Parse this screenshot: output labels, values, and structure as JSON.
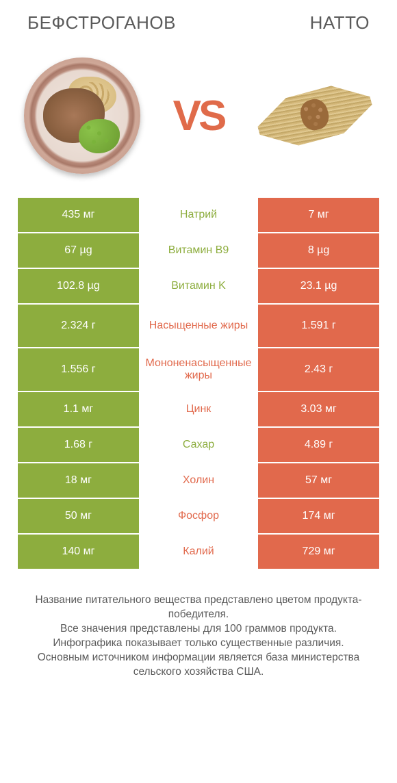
{
  "header": {
    "left_title": "БЕФСТРОГАНОВ",
    "right_title": "НАТТО"
  },
  "vs_label": "VS",
  "colors": {
    "left_bar": "#8dad3e",
    "right_bar": "#e1694c",
    "mid_text_left_winner": "#8dad3e",
    "mid_text_right_winner": "#e1694c",
    "background": "#ffffff",
    "value_text": "#ffffff",
    "header_text": "#5a5a5a",
    "footer_text": "#5a5a5a"
  },
  "table": {
    "row_height_single": 50,
    "row_height_double": 62,
    "font_size_value": 16,
    "font_size_label": 16,
    "rows": [
      {
        "label": "Натрий",
        "left": "435 мг",
        "right": "7 мг",
        "winner": "left"
      },
      {
        "label": "Витамин B9",
        "left": "67 µg",
        "right": "8 µg",
        "winner": "left"
      },
      {
        "label": "Витамин K",
        "left": "102.8 µg",
        "right": "23.1 µg",
        "winner": "left"
      },
      {
        "label": "Насыщенные жиры",
        "left": "2.324 г",
        "right": "1.591 г",
        "winner": "right"
      },
      {
        "label": "Мононенасыщенные жиры",
        "left": "1.556 г",
        "right": "2.43 г",
        "winner": "right"
      },
      {
        "label": "Цинк",
        "left": "1.1 мг",
        "right": "3.03 мг",
        "winner": "right"
      },
      {
        "label": "Сахар",
        "left": "1.68 г",
        "right": "4.89 г",
        "winner": "left"
      },
      {
        "label": "Холин",
        "left": "18 мг",
        "right": "57 мг",
        "winner": "right"
      },
      {
        "label": "Фосфор",
        "left": "50 мг",
        "right": "174 мг",
        "winner": "right"
      },
      {
        "label": "Калий",
        "left": "140 мг",
        "right": "729 мг",
        "winner": "right"
      }
    ]
  },
  "footer": {
    "line1": "Название питательного вещества представлено цветом продукта-победителя.",
    "line2": "Все значения представлены для 100 граммов продукта.",
    "line3": "Инфографика показывает только существенные различия.",
    "line4": "Основным источником информации является база министерства сельского хозяйства США."
  }
}
